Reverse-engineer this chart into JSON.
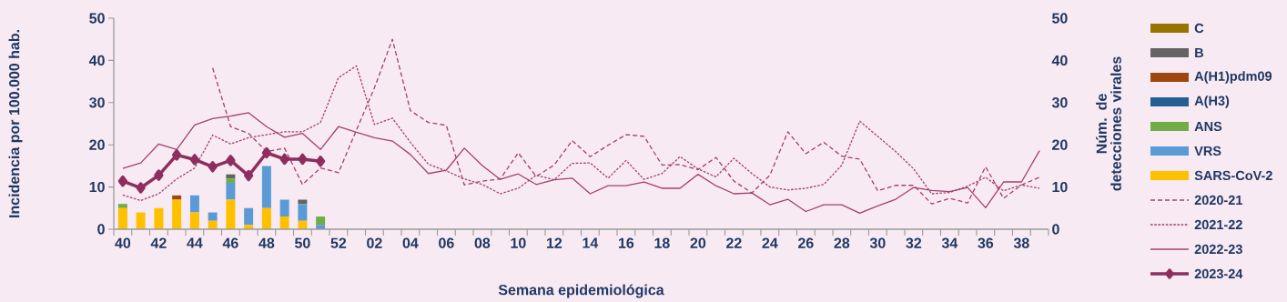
{
  "chart_data": {
    "type": "bar",
    "xlabel": "Semana epidemiológica",
    "ylabel": "Incidencia por 100.000 hab.",
    "y2label": "Núm. de detecciones virales",
    "categories": [
      "40",
      null,
      "42",
      null,
      "44",
      null,
      "46",
      null,
      "48",
      null,
      "50",
      null,
      "52",
      null,
      "02",
      null,
      "04",
      null,
      "06",
      null,
      "08",
      null,
      "10",
      null,
      "12",
      null,
      "14",
      null,
      "16",
      null,
      "18",
      null,
      "20",
      null,
      "22",
      null,
      "24",
      null,
      "26",
      null,
      "28",
      null,
      "30",
      null,
      "32",
      null,
      "34",
      null,
      "36",
      null,
      "38",
      null
    ],
    "stacked": true,
    "legend": "right",
    "ylim": [
      0,
      50
    ],
    "yticks": [
      0,
      10,
      20,
      30,
      40,
      50
    ],
    "y2lim": [
      0,
      50
    ],
    "y2ticks": [
      0,
      10,
      20,
      30,
      40,
      50
    ],
    "series": [
      {
        "name": "SARS-CoV-2",
        "axis": "y2",
        "color": "#ffc000",
        "values": [
          5,
          4,
          5,
          7,
          4,
          2,
          7,
          1,
          5,
          3,
          2,
          0,
          null,
          null,
          null,
          null,
          null,
          null,
          null,
          null,
          null,
          null,
          null,
          null,
          null,
          null,
          null,
          null,
          null,
          null,
          null,
          null,
          null,
          null,
          null,
          null,
          null,
          null,
          null,
          null,
          null,
          null,
          null,
          null,
          null,
          null,
          null,
          null,
          null,
          null,
          null,
          null
        ]
      },
      {
        "name": "VRS",
        "axis": "y2",
        "color": "#5b9bd5",
        "values": [
          0,
          0,
          0,
          0,
          4,
          2,
          4,
          4,
          10,
          4,
          4,
          1,
          null,
          null,
          null,
          null,
          null,
          null,
          null,
          null,
          null,
          null,
          null,
          null,
          null,
          null,
          null,
          null,
          null,
          null,
          null,
          null,
          null,
          null,
          null,
          null,
          null,
          null,
          null,
          null,
          null,
          null,
          null,
          null,
          null,
          null,
          null,
          null,
          null,
          null,
          null,
          null
        ]
      },
      {
        "name": "ANS",
        "axis": "y2",
        "color": "#70ad47",
        "values": [
          1,
          0,
          0,
          0,
          0,
          0,
          1,
          0,
          0,
          0,
          0,
          2,
          null,
          null,
          null,
          null,
          null,
          null,
          null,
          null,
          null,
          null,
          null,
          null,
          null,
          null,
          null,
          null,
          null,
          null,
          null,
          null,
          null,
          null,
          null,
          null,
          null,
          null,
          null,
          null,
          null,
          null,
          null,
          null,
          null,
          null,
          null,
          null,
          null,
          null,
          null,
          null
        ]
      },
      {
        "name": "A(H3)",
        "axis": "y2",
        "color": "#255e91",
        "values": [
          0,
          0,
          0,
          0,
          0,
          0,
          0,
          0,
          0,
          0,
          0,
          0,
          null,
          null,
          null,
          null,
          null,
          null,
          null,
          null,
          null,
          null,
          null,
          null,
          null,
          null,
          null,
          null,
          null,
          null,
          null,
          null,
          null,
          null,
          null,
          null,
          null,
          null,
          null,
          null,
          null,
          null,
          null,
          null,
          null,
          null,
          null,
          null,
          null,
          null,
          null,
          null
        ]
      },
      {
        "name": "A(H1)pdm09",
        "axis": "y2",
        "color": "#9e480e",
        "values": [
          0,
          0,
          0,
          1,
          0,
          0,
          0,
          0,
          0,
          0,
          0,
          0,
          null,
          null,
          null,
          null,
          null,
          null,
          null,
          null,
          null,
          null,
          null,
          null,
          null,
          null,
          null,
          null,
          null,
          null,
          null,
          null,
          null,
          null,
          null,
          null,
          null,
          null,
          null,
          null,
          null,
          null,
          null,
          null,
          null,
          null,
          null,
          null,
          null,
          null,
          null,
          null
        ]
      },
      {
        "name": "B",
        "axis": "y2",
        "color": "#636363",
        "values": [
          0,
          0,
          0,
          0,
          0,
          0,
          1,
          0,
          0,
          0,
          1,
          0,
          null,
          null,
          null,
          null,
          null,
          null,
          null,
          null,
          null,
          null,
          null,
          null,
          null,
          null,
          null,
          null,
          null,
          null,
          null,
          null,
          null,
          null,
          null,
          null,
          null,
          null,
          null,
          null,
          null,
          null,
          null,
          null,
          null,
          null,
          null,
          null,
          null,
          null,
          null,
          null
        ]
      },
      {
        "name": "C",
        "axis": "y2",
        "color": "#997300",
        "values": [
          0,
          0,
          0,
          0,
          0,
          0,
          0,
          0,
          0,
          0,
          0,
          0,
          null,
          null,
          null,
          null,
          null,
          null,
          null,
          null,
          null,
          null,
          null,
          null,
          null,
          null,
          null,
          null,
          null,
          null,
          null,
          null,
          null,
          null,
          null,
          null,
          null,
          null,
          null,
          null,
          null,
          null,
          null,
          null,
          null,
          null,
          null,
          null,
          null,
          null,
          null,
          null
        ]
      },
      {
        "name": "2020-21",
        "type": "line",
        "color": "#a3406f",
        "line_style": "dashed",
        "values": [
          null,
          null,
          null,
          null,
          null,
          38.2,
          24.3,
          22.7,
          18.4,
          19.2,
          10.6,
          14.5,
          13.4,
          23.5,
          33.5,
          45.0,
          28.1,
          25.3,
          24.6,
          10.5,
          11.4,
          11.9,
          18.1,
          12.5,
          15.2,
          21.0,
          17.2,
          19.9,
          22.4,
          22.0,
          15.2,
          15.3,
          14.1,
          17.0,
          11.4,
          8.6,
          12.8,
          23.1,
          17.9,
          20.6,
          17.3,
          16.6,
          9.1,
          10.4,
          10.4,
          6.0,
          7.3,
          6.2,
          14.8,
          7.3,
          10.5,
          12.3
        ]
      },
      {
        "name": "2021-22",
        "type": "line",
        "color": "#a3406f",
        "line_style": "dotted",
        "values": [
          8.1,
          6.8,
          8.4,
          11.9,
          14.5,
          22.3,
          20.2,
          21.7,
          22.4,
          23.1,
          23.1,
          25.3,
          35.9,
          38.7,
          24.8,
          26.3,
          20.6,
          15.4,
          13.8,
          11.9,
          10.6,
          8.4,
          9.7,
          12.8,
          11.7,
          15.6,
          15.7,
          12.1,
          16.3,
          11.8,
          13.2,
          17.2,
          14.3,
          12.4,
          16.8,
          13.2,
          10.0,
          9.3,
          9.7,
          10.6,
          15.2,
          25.6,
          22.0,
          18.4,
          14.3,
          8.4,
          8.7,
          10.2,
          12.3,
          9.1,
          10.5,
          9.7
        ]
      },
      {
        "name": "2022-23",
        "type": "line",
        "color": "#a3406f",
        "line_style": "solid",
        "values": [
          14.4,
          15.7,
          20.2,
          18.9,
          24.7,
          26.2,
          26.8,
          27.6,
          24.3,
          21.8,
          22.7,
          18.9,
          24.3,
          23.0,
          21.7,
          20.9,
          17.7,
          13.2,
          14.0,
          19.2,
          15.1,
          11.8,
          13.1,
          10.6,
          11.7,
          12.1,
          8.4,
          10.3,
          10.3,
          11.2,
          9.7,
          9.7,
          13.0,
          10.3,
          8.4,
          8.6,
          5.8,
          7.1,
          4.2,
          5.8,
          5.8,
          3.8,
          5.5,
          7.1,
          9.9,
          9.2,
          8.9,
          9.9,
          5.1,
          11.2,
          11.2,
          18.6
        ]
      },
      {
        "name": "2023-24",
        "type": "line",
        "color": "#8e2d5e",
        "line_style": "solid",
        "marker": "diamond",
        "values": [
          11.4,
          9.8,
          12.8,
          17.6,
          16.5,
          14.8,
          16.3,
          12.7,
          18.1,
          16.6,
          16.6,
          16.1,
          null,
          null,
          null,
          null,
          null,
          null,
          null,
          null,
          null,
          null,
          null,
          null,
          null,
          null,
          null,
          null,
          null,
          null,
          null,
          null,
          null,
          null,
          null,
          null,
          null,
          null,
          null,
          null,
          null,
          null,
          null,
          null,
          null,
          null,
          null,
          null,
          null,
          null,
          null,
          null
        ]
      }
    ]
  }
}
